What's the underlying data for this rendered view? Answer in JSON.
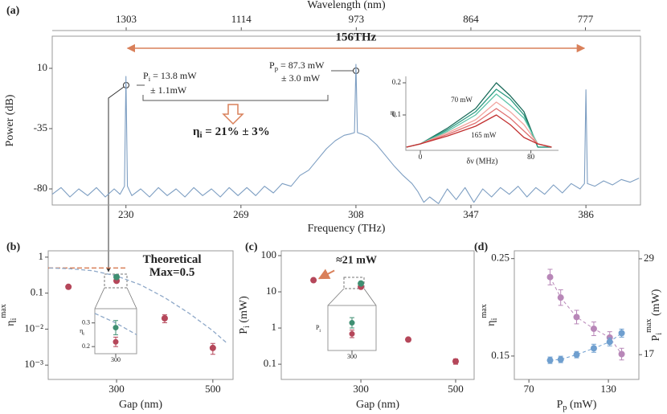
{
  "chart_data": [
    {
      "type": "line",
      "panel": "(a)",
      "xlabel": "Frequency (THz)",
      "ylabel": "Power (dB)",
      "x2label": "Wavelength (nm)",
      "xlim": [
        205,
        404.5
      ],
      "xticks": [
        230,
        269,
        308,
        347,
        386
      ],
      "x2ticks": [
        1303,
        1114,
        973,
        864,
        777
      ],
      "ylim": [
        -92,
        34
      ],
      "yticks": [
        10,
        -35,
        -80
      ],
      "x": [
        205,
        208,
        211,
        214,
        217,
        220,
        223,
        226,
        228,
        229.5,
        230,
        230.5,
        232,
        235,
        238,
        241,
        244,
        247,
        250,
        253,
        256,
        259,
        262,
        265,
        268,
        271,
        274,
        277,
        280,
        283,
        286,
        289,
        292,
        295,
        298,
        301,
        304,
        306,
        307.5,
        308,
        308.5,
        310,
        312,
        315,
        318,
        321,
        324,
        327,
        329,
        331,
        333,
        336,
        339,
        342,
        345,
        348,
        351,
        354,
        357,
        360,
        363,
        366,
        369,
        372,
        375,
        378,
        381,
        384,
        385.5,
        386,
        386.5,
        389,
        392,
        395,
        398,
        401,
        404
      ],
      "series": [
        {
          "color": "#7d9ec2",
          "values": [
            -84,
            -79,
            -86,
            -80,
            -85,
            -79,
            -86,
            -80,
            -84,
            -78,
            4,
            -78,
            -85,
            -80,
            -86,
            -79,
            -85,
            -80,
            -86,
            -79,
            -85,
            -80,
            -86,
            -79,
            -85,
            -79,
            -85,
            -78,
            -83,
            -76,
            -78,
            -70,
            -66,
            -58,
            -50,
            -44,
            -40,
            -39,
            -38,
            13,
            -38,
            -39,
            -41,
            -47,
            -55,
            -63,
            -70,
            -76,
            -82,
            -90,
            -86,
            -91,
            -80,
            -88,
            -79,
            -90,
            -80,
            -86,
            -79,
            -84,
            -78,
            -86,
            -79,
            -84,
            -77,
            -83,
            -76,
            -80,
            -76,
            -6,
            -76,
            -78,
            -74,
            -77,
            -73,
            -75,
            -72
          ]
        }
      ],
      "span_label": "156THz",
      "pi_label": {
        "text": "P",
        "sub": "i",
        "tail": " = 13.8 mW"
      },
      "pi_error": "± 1.1mW",
      "pp_label": {
        "text": "P",
        "sub": "p",
        "tail": " = 87.3 mW"
      },
      "pp_error": "± 3.0 mW",
      "efficiency_label": {
        "text": "η",
        "sub": "i",
        "tail": " = 21% ± 3%"
      }
    },
    {
      "type": "line",
      "xlabel": "δν (MHz)",
      "ylabel": {
        "text": "η",
        "sub": "i"
      },
      "xlim": [
        -10.5,
        100
      ],
      "xticks": [
        0,
        80
      ],
      "ylim": [
        -0.01,
        0.22
      ],
      "yticks": [
        0.1,
        0.2
      ],
      "x": [
        -10,
        0,
        20,
        40,
        55,
        65,
        75,
        85,
        95
      ],
      "series": [
        {
          "name": "70 mW",
          "color": "#1a6b5a",
          "values": [
            0,
            0.01,
            0.06,
            0.12,
            0.2,
            0.16,
            0.11,
            0.0,
            0
          ]
        },
        {
          "color": "#2a9a80",
          "values": [
            0,
            0.01,
            0.055,
            0.11,
            0.18,
            0.15,
            0.1,
            0.0,
            0
          ]
        },
        {
          "color": "#5cc3a8",
          "values": [
            0,
            0.01,
            0.05,
            0.1,
            0.165,
            0.13,
            0.09,
            0.01,
            0
          ]
        },
        {
          "color": "#f2a6a0",
          "values": [
            0,
            0.01,
            0.045,
            0.085,
            0.14,
            0.11,
            0.07,
            0.01,
            0
          ]
        },
        {
          "color": "#e07070",
          "values": [
            0,
            0.01,
            0.04,
            0.075,
            0.12,
            0.09,
            0.05,
            0.01,
            0
          ]
        },
        {
          "name": "165 mW",
          "color": "#c23030",
          "values": [
            0,
            0.01,
            0.035,
            0.065,
            0.1,
            0.07,
            0.03,
            0.01,
            0
          ]
        }
      ]
    },
    {
      "type": "scatter",
      "panel": "(b)",
      "xlabel": "Gap (nm)",
      "ylabel": {
        "text": "η",
        "sub": "i",
        "sup": "max"
      },
      "ylog": true,
      "xlim": [
        158,
        542
      ],
      "xticks": [
        300,
        500
      ],
      "ylim": [
        0.0004,
        1.5
      ],
      "yticks": [
        1,
        0.1,
        {
          "value": 0.01,
          "label": "10⁻²"
        },
        {
          "value": 0.001,
          "label": "10⁻³"
        }
      ],
      "series": [
        {
          "color": "#b5475a",
          "x": [
            200,
            300,
            400,
            500
          ],
          "values": [
            0.15,
            0.22,
            0.02,
            0.003
          ],
          "errors": [
            null,
            0.02,
            0.005,
            0.001
          ]
        },
        {
          "color": "#3f8f72",
          "x": [
            300
          ],
          "values": [
            0.28
          ],
          "errors": [
            0.03
          ]
        }
      ],
      "curve": {
        "color": "#8ea8c8",
        "x": [
          160,
          200,
          250,
          300,
          350,
          400,
          450,
          500,
          530
        ],
        "values": [
          0.5,
          0.48,
          0.42,
          0.3,
          0.17,
          0.075,
          0.028,
          0.009,
          0.004
        ]
      },
      "limit": {
        "value": 0.5,
        "color": "#d9805a",
        "label": [
          "Theoretical",
          "Max=0.5"
        ]
      }
    },
    {
      "type": "scatter",
      "ylabel": {
        "text": "η",
        "sub": "i"
      },
      "xlim": [
        285,
        315
      ],
      "xticks": [
        300
      ],
      "ylim": [
        0.17,
        0.36
      ],
      "yticks": [
        0.2,
        0.3
      ],
      "series": [
        {
          "color": "#b5475a",
          "x": [
            300
          ],
          "values": [
            0.22
          ],
          "errors": [
            0.02
          ]
        },
        {
          "color": "#3f8f72",
          "x": [
            300
          ],
          "values": [
            0.28
          ],
          "errors": [
            0.03
          ]
        }
      ],
      "curve": {
        "color": "#8ea8c8",
        "x": [
          285,
          300,
          315
        ],
        "values": [
          0.34,
          0.3,
          0.25
        ]
      }
    },
    {
      "type": "scatter",
      "panel": "(c)",
      "xlabel": "Gap (nm)",
      "ylabel": {
        "text": "P",
        "sub": "i",
        "tail": " (mW)"
      },
      "ylog": true,
      "xlim": [
        132,
        539
      ],
      "xticks": [
        300,
        500
      ],
      "ylim": [
        0.038,
        136
      ],
      "yticks": [
        100,
        10,
        1,
        0.1
      ],
      "series": [
        {
          "color": "#b5475a",
          "x": [
            200,
            300,
            400,
            500
          ],
          "values": [
            21,
            13.8,
            0.48,
            0.12
          ],
          "errors": [
            null,
            1.1,
            0.05,
            0.02
          ]
        },
        {
          "color": "#3f8f72",
          "x": [
            300
          ],
          "values": [
            17
          ],
          "errors": [
            1.5
          ]
        }
      ],
      "note": "≈21 mW"
    },
    {
      "type": "scatter",
      "ylabel": {
        "text": "P",
        "sub": "i"
      },
      "xlim": [
        285,
        315
      ],
      "xticks": [
        300
      ],
      "ylim": [
        9,
        22
      ],
      "series": [
        {
          "color": "#b5475a",
          "x": [
            300
          ],
          "values": [
            13.8
          ],
          "errors": [
            1.1
          ]
        },
        {
          "color": "#3f8f72",
          "x": [
            300
          ],
          "values": [
            17
          ],
          "errors": [
            1.5
          ]
        }
      ]
    },
    {
      "type": "scatter",
      "panel": "(d)",
      "xlabel": {
        "text": "P",
        "sub": "p",
        "tail": " (mW)"
      },
      "ylabel": {
        "text": "η",
        "sub": "i",
        "sup": "max"
      },
      "y2label": {
        "text": "P",
        "sub": "i",
        "sup": "max",
        "tail": " (mW)"
      },
      "xlim": [
        59,
        153
      ],
      "xticks": [
        70,
        130
      ],
      "ylim": [
        0.126,
        0.258
      ],
      "yticks": [
        0.15,
        0.25
      ],
      "y2lim": [
        13.9,
        30
      ],
      "y2ticks": [
        17,
        29
      ],
      "x": [
        86,
        94,
        106,
        119,
        131,
        140
      ],
      "series": [
        {
          "color": "#b887b8",
          "values": [
            0.231,
            0.21,
            0.19,
            0.178,
            0.169,
            0.152
          ],
          "errors": [
            0.008,
            0.008,
            0.007,
            0.007,
            0.006,
            0.006
          ],
          "fit": true
        },
        {
          "color": "#6f9fcf",
          "axis": "y2",
          "values": [
            16.3,
            16.4,
            17.0,
            17.8,
            18.6,
            19.7
          ],
          "errors": [
            0.4,
            0.4,
            0.4,
            0.5,
            0.5,
            0.5
          ],
          "fit": true
        }
      ]
    }
  ]
}
